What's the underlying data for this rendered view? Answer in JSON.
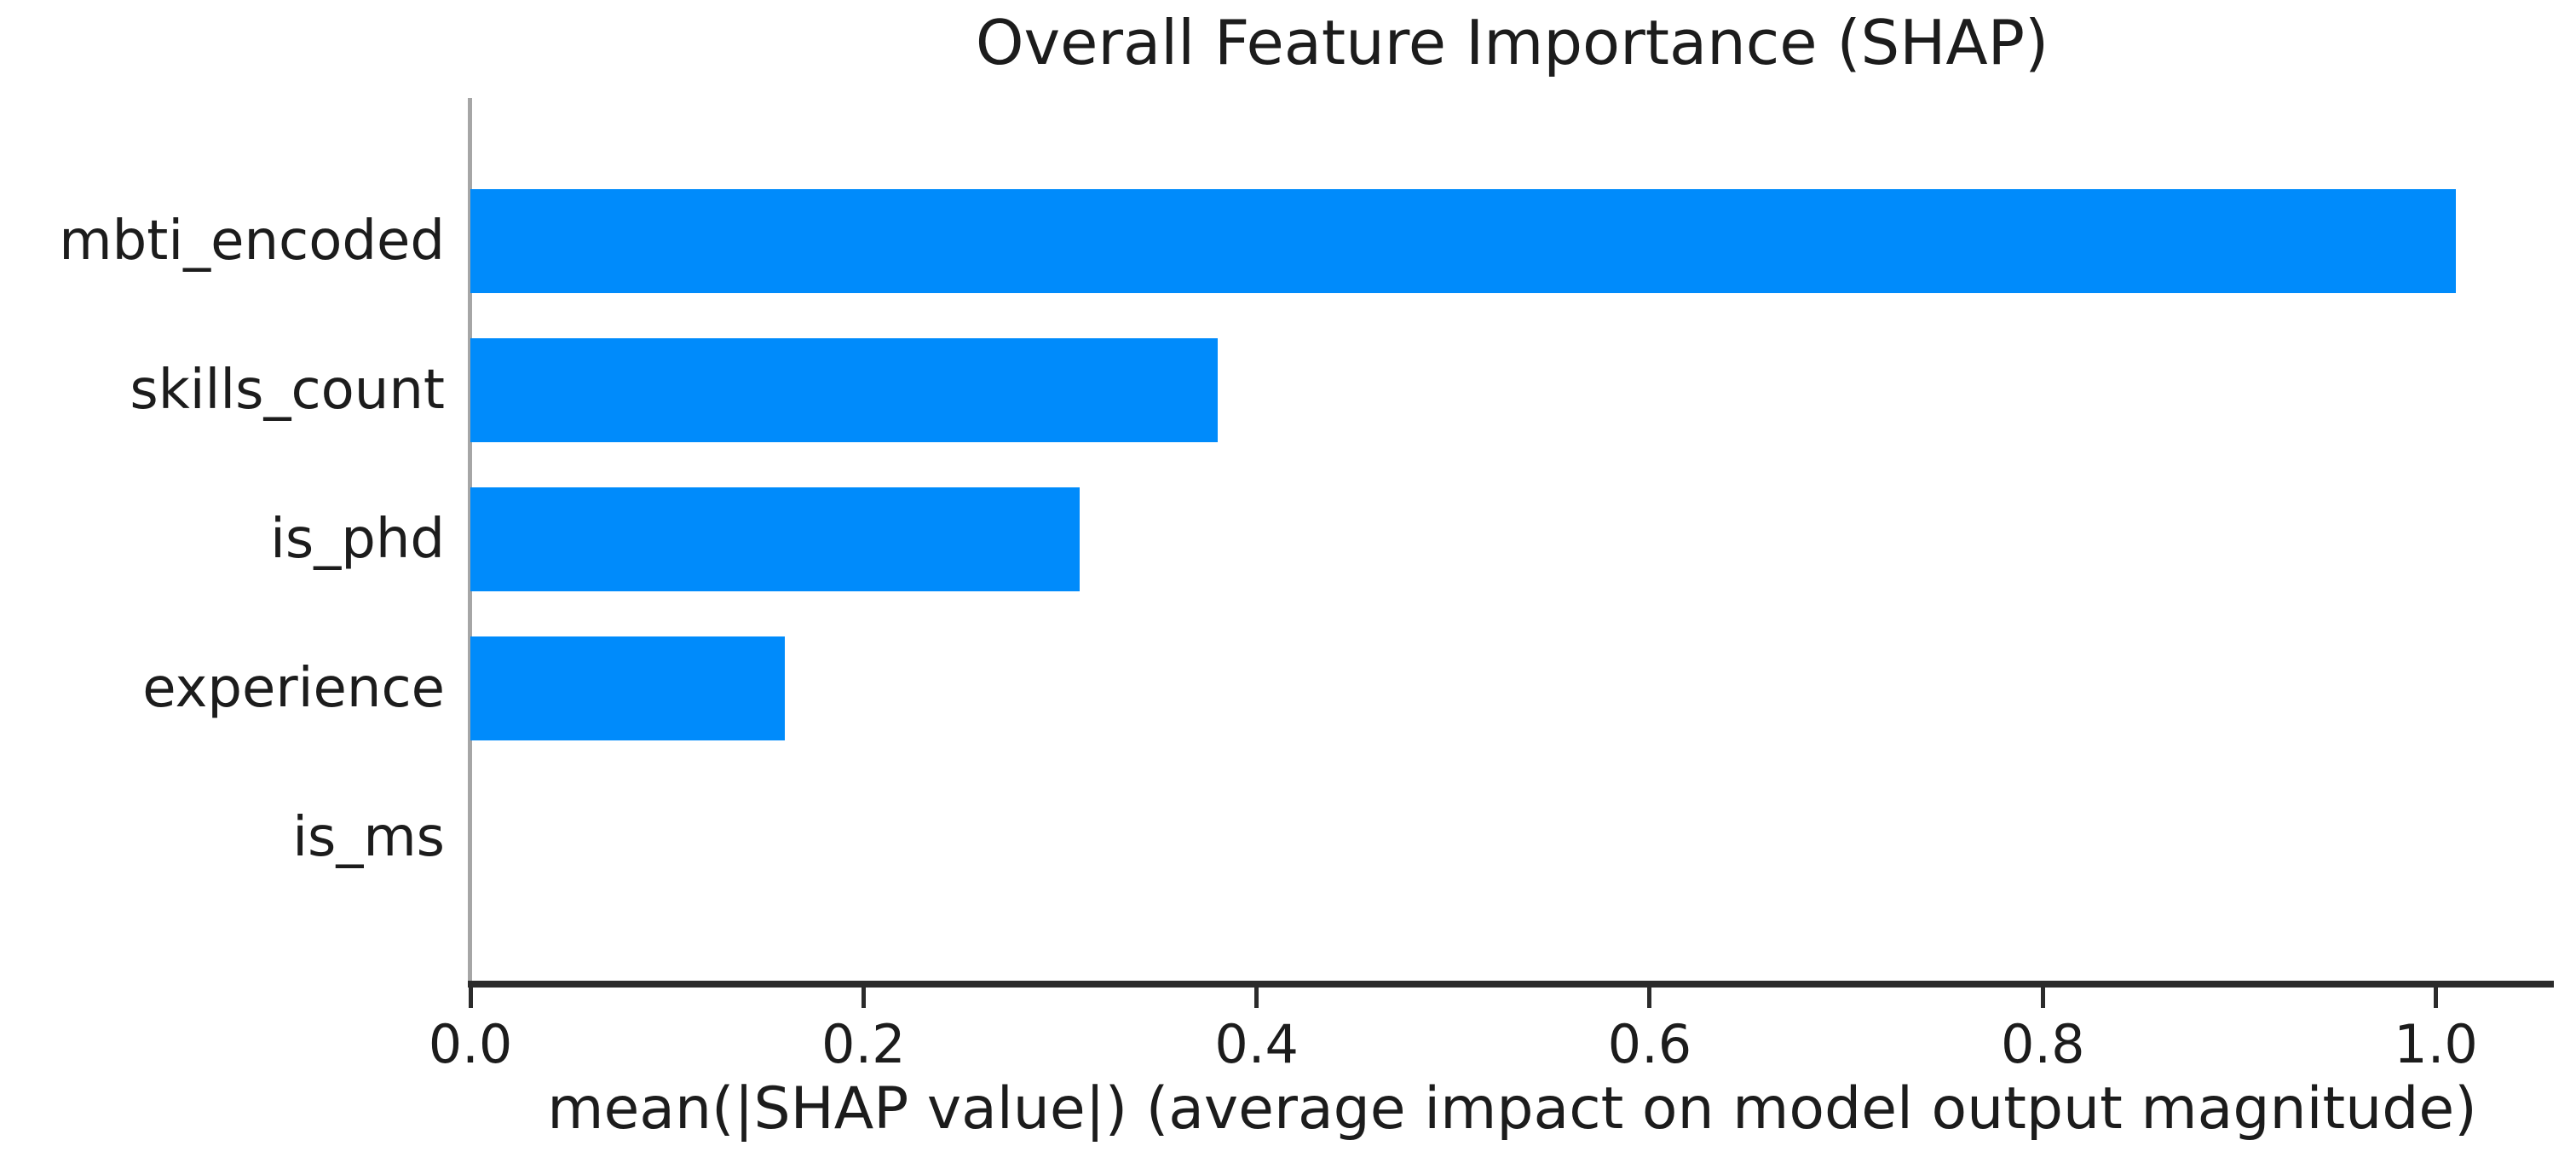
{
  "chart_data": {
    "type": "bar",
    "orientation": "horizontal",
    "title": "Overall Feature Importance (SHAP)",
    "xlabel": "mean(|SHAP value|) (average impact on model output magnitude)",
    "ylabel": "",
    "categories": [
      "mbti_encoded",
      "skills_count",
      "is_phd",
      "experience",
      "is_ms"
    ],
    "values": [
      1.01,
      0.38,
      0.31,
      0.16,
      0.0
    ],
    "xlim": [
      0,
      1.06
    ],
    "xticks": [
      0.0,
      0.2,
      0.4,
      0.6,
      0.8,
      1.0
    ],
    "xtick_labels": [
      "0.0",
      "0.2",
      "0.4",
      "0.6",
      "0.8",
      "1.0"
    ],
    "grid": false,
    "legend": null,
    "colors": {
      "bar": "#008bfb",
      "text": "#1c1c1c",
      "bottom_spine": "#2b2b2b",
      "left_spine": "#a6a6a6",
      "background": "#ffffff"
    }
  }
}
